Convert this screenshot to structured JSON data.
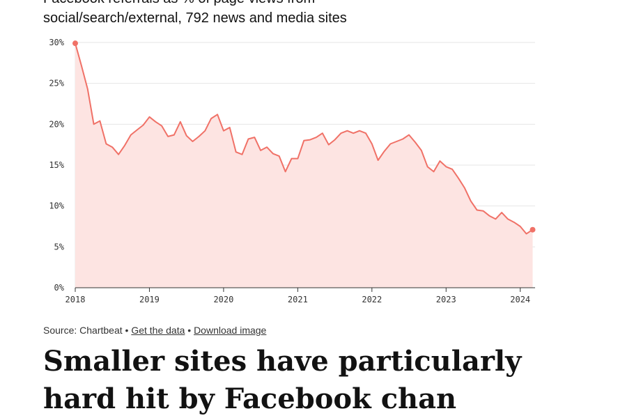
{
  "subtitle": {
    "line1": "Facebook referrals as % of page views from",
    "line2": "social/search/external, 792 news and media sites"
  },
  "source": {
    "prefix": "Source: Chartbeat",
    "sep": "•",
    "get_data": "Get the data",
    "download": "Download image"
  },
  "headline": {
    "line1": "Smaller sites have particularly",
    "line2": "hard hit by Facebook chan"
  },
  "colors": {
    "line": "#f07167",
    "area": "#fde4e2",
    "grid": "#e6e6e6",
    "axis": "#333333"
  },
  "chart_data": {
    "type": "area",
    "xlim": [
      2018,
      2024.2
    ],
    "ylim": [
      0,
      30
    ],
    "y_ticks": [
      0,
      5,
      10,
      15,
      20,
      25,
      30
    ],
    "y_tick_labels": [
      "0%",
      "5%",
      "10%",
      "15%",
      "20%",
      "25%",
      "30%"
    ],
    "x_ticks": [
      2018,
      2019,
      2020,
      2021,
      2022,
      2023,
      2024
    ],
    "x_tick_labels": [
      "2018",
      "2019",
      "2020",
      "2021",
      "2022",
      "2023",
      "2024"
    ],
    "grid": true,
    "series": [
      {
        "x": [
          2018.0,
          2018.083,
          2018.167,
          2018.25,
          2018.333,
          2018.417,
          2018.5,
          2018.583,
          2018.667,
          2018.75,
          2018.833,
          2018.917,
          2019.0,
          2019.083,
          2019.167,
          2019.25,
          2019.333,
          2019.417,
          2019.5,
          2019.583,
          2019.667,
          2019.75,
          2019.833,
          2019.917,
          2020.0,
          2020.083,
          2020.167,
          2020.25,
          2020.333,
          2020.417,
          2020.5,
          2020.583,
          2020.667,
          2020.75,
          2020.833,
          2020.917,
          2021.0,
          2021.083,
          2021.167,
          2021.25,
          2021.333,
          2021.417,
          2021.5,
          2021.583,
          2021.667,
          2021.75,
          2021.833,
          2021.917,
          2022.0,
          2022.083,
          2022.167,
          2022.25,
          2022.333,
          2022.417,
          2022.5,
          2022.583,
          2022.667,
          2022.75,
          2022.833,
          2022.917,
          2023.0,
          2023.083,
          2023.167,
          2023.25,
          2023.333,
          2023.417,
          2023.5,
          2023.583,
          2023.667,
          2023.75,
          2023.833,
          2023.917,
          2024.0,
          2024.083,
          2024.167
        ],
        "y": [
          29.9,
          27.2,
          24.3,
          20.0,
          20.4,
          17.6,
          17.2,
          16.3,
          17.4,
          18.7,
          19.3,
          19.9,
          20.9,
          20.3,
          19.8,
          18.5,
          18.7,
          20.3,
          18.6,
          17.9,
          18.5,
          19.2,
          20.7,
          21.2,
          19.2,
          19.6,
          16.6,
          16.3,
          18.2,
          18.4,
          16.8,
          17.2,
          16.4,
          16.1,
          14.2,
          15.8,
          15.8,
          18.0,
          18.1,
          18.4,
          18.9,
          17.5,
          18.1,
          18.9,
          19.2,
          18.9,
          19.2,
          18.9,
          17.6,
          15.6,
          16.7,
          17.6,
          17.9,
          18.2,
          18.7,
          17.8,
          16.8,
          14.8,
          14.2,
          15.5,
          14.8,
          14.5,
          13.4,
          12.2,
          10.6,
          9.5,
          9.4,
          8.8,
          8.4,
          9.2,
          8.4,
          8.0,
          7.5,
          6.6,
          7.1
        ]
      }
    ]
  }
}
